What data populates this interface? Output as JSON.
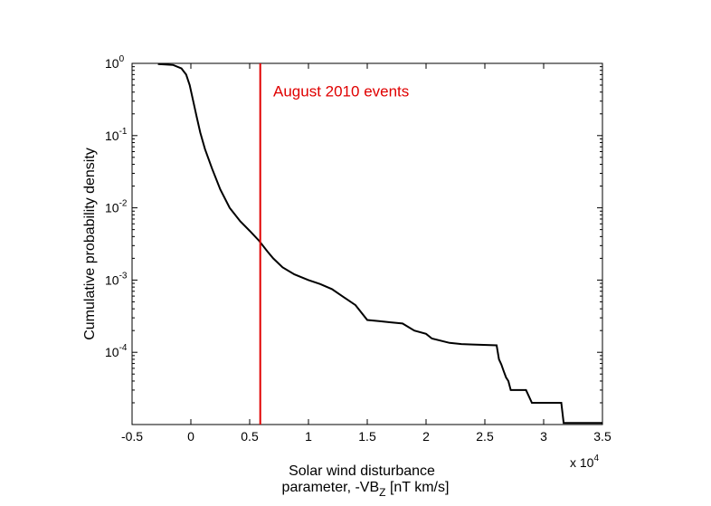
{
  "chart_data": {
    "type": "line",
    "title": "",
    "xlabel_line1": "Solar wind disturbance",
    "xlabel_line2_main": "parameter, -VB",
    "xlabel_line2_sub": "Z",
    "xlabel_line2_end": " [nT km/s]",
    "ylabel": "Cumulative probability density",
    "x_multiplier": {
      "base": "x 10",
      "exponent": "4"
    },
    "xlim": [
      -0.5,
      3.5
    ],
    "ylim": [
      1e-05,
      1
    ],
    "yscale": "log",
    "grid": false,
    "x_ticks": [
      {
        "value": -0.5,
        "label": "-0.5"
      },
      {
        "value": 0,
        "label": "0"
      },
      {
        "value": 0.5,
        "label": "0.5"
      },
      {
        "value": 1,
        "label": "1"
      },
      {
        "value": 1.5,
        "label": "1.5"
      },
      {
        "value": 2,
        "label": "2"
      },
      {
        "value": 2.5,
        "label": "2.5"
      },
      {
        "value": 3,
        "label": "3"
      },
      {
        "value": 3.5,
        "label": "3.5"
      }
    ],
    "y_ticks": [
      {
        "value": 1,
        "base": "10",
        "exponent": "0"
      },
      {
        "value": 0.1,
        "base": "10",
        "exponent": "-1"
      },
      {
        "value": 0.01,
        "base": "10",
        "exponent": "-2"
      },
      {
        "value": 0.001,
        "base": "10",
        "exponent": "-3"
      },
      {
        "value": 0.0001,
        "base": "10",
        "exponent": "-4"
      }
    ],
    "series": [
      {
        "color": "#000000",
        "x": [
          -0.28,
          -0.15,
          -0.08,
          -0.04,
          -0.01,
          0.02,
          0.05,
          0.08,
          0.12,
          0.18,
          0.25,
          0.33,
          0.42,
          0.5,
          0.58,
          0.65,
          0.7,
          0.78,
          0.88,
          1.0,
          1.1,
          1.2,
          1.3,
          1.4,
          1.5,
          1.6,
          1.7,
          1.8,
          1.9,
          2.0,
          2.05,
          2.2,
          2.3,
          2.4,
          2.6,
          2.62,
          2.64,
          2.66,
          2.68,
          2.7,
          2.72,
          2.75,
          2.85,
          2.9,
          2.92,
          3.1,
          3.15,
          3.17,
          3.2,
          3.5
        ],
        "y": [
          0.98,
          0.95,
          0.85,
          0.7,
          0.5,
          0.3,
          0.18,
          0.11,
          0.065,
          0.035,
          0.018,
          0.01,
          0.0065,
          0.0048,
          0.0035,
          0.0025,
          0.002,
          0.0015,
          0.0012,
          0.001,
          0.00088,
          0.00075,
          0.00058,
          0.00045,
          0.00028,
          0.00027,
          0.00026,
          0.00025,
          0.0002,
          0.00018,
          0.000155,
          0.000135,
          0.00013,
          0.000128,
          0.000125,
          8e-05,
          6.8e-05,
          5.5e-05,
          4.5e-05,
          4e-05,
          3e-05,
          3e-05,
          3e-05,
          2e-05,
          2e-05,
          2e-05,
          2e-05,
          1.05e-05,
          1.05e-05,
          1.05e-05
        ]
      }
    ],
    "annotations": [
      {
        "type": "vline",
        "x": 0.59,
        "color": "#e00000",
        "label": "August 2010 events",
        "label_x": 0.7,
        "label_y": 0.35
      }
    ]
  }
}
